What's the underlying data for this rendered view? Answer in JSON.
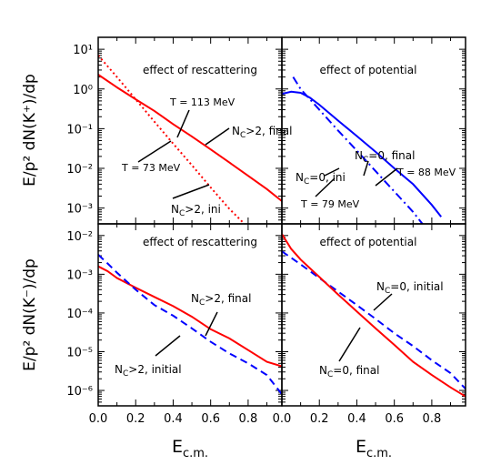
{
  "chart_data": [
    {
      "id": "k_plus_rescattering",
      "type": "line",
      "title": "effect of rescattering",
      "ylabel": "E/p² dN(K⁺)/dp",
      "ylog": true,
      "ylim": [
        0.0004,
        20
      ],
      "xlim": [
        0.0,
        0.98
      ],
      "yticks": [
        "10¹",
        "10⁰",
        "10⁻¹",
        "10⁻²",
        "10⁻³"
      ],
      "series": [
        {
          "name": "NC>2, final",
          "color": "#ff0000",
          "dash": "solid",
          "x": [
            0.0,
            0.1,
            0.2,
            0.3,
            0.4,
            0.5,
            0.6,
            0.7,
            0.8,
            0.9,
            0.98
          ],
          "y": [
            2.3,
            1.1,
            0.55,
            0.28,
            0.13,
            0.063,
            0.03,
            0.014,
            0.0065,
            0.003,
            0.0015
          ]
        },
        {
          "name": "NC>2, ini",
          "color": "#ff0000",
          "dash": "dot",
          "x": [
            0.0,
            0.1,
            0.2,
            0.3,
            0.4,
            0.5,
            0.6,
            0.7,
            0.78
          ],
          "y": [
            7.0,
            2.0,
            0.55,
            0.15,
            0.042,
            0.012,
            0.0033,
            0.00095,
            0.0004
          ]
        }
      ],
      "annotations": [
        "T = 113 MeV",
        "T = 73 MeV",
        "N_C>2, final",
        "N_C>2, ini"
      ]
    },
    {
      "id": "k_plus_potential",
      "type": "line",
      "title": "effect of potential",
      "ylog": true,
      "ylim": [
        0.0004,
        20
      ],
      "xlim": [
        0.0,
        0.98
      ],
      "series": [
        {
          "name": "NC=0, final",
          "color": "#0000ff",
          "dash": "solid",
          "x": [
            0.0,
            0.05,
            0.1,
            0.15,
            0.2,
            0.3,
            0.4,
            0.5,
            0.6,
            0.7,
            0.8,
            0.85
          ],
          "y": [
            0.75,
            0.85,
            0.8,
            0.6,
            0.4,
            0.16,
            0.065,
            0.026,
            0.01,
            0.004,
            0.0012,
            0.0006
          ]
        },
        {
          "name": "NC=0, ini",
          "color": "#0000ff",
          "dash": "dashdot",
          "x": [
            0.06,
            0.1,
            0.2,
            0.3,
            0.4,
            0.5,
            0.6,
            0.7,
            0.75
          ],
          "y": [
            2.0,
            1.0,
            0.3,
            0.09,
            0.028,
            0.0085,
            0.0026,
            0.0008,
            0.0004
          ]
        }
      ],
      "annotations": [
        "N_C=0, final",
        "T = 88 MeV",
        "N_C=0, ini",
        "T = 79 MeV"
      ]
    },
    {
      "id": "k_minus_rescattering",
      "type": "line",
      "title": "effect of rescattering",
      "ylabel": "E/p² dN(K⁻)/dp",
      "xlabel": "E_c.m.",
      "ylog": true,
      "ylim": [
        4e-07,
        0.02
      ],
      "xlim": [
        0.0,
        0.98
      ],
      "yticks": [
        "10⁻²",
        "10⁻³",
        "10⁻⁴",
        "10⁻⁵",
        "10⁻⁶"
      ],
      "xticks": [
        "0.0",
        "0.2",
        "0.4",
        "0.6",
        "0.8"
      ],
      "series": [
        {
          "name": "NC>2, final",
          "color": "#ff0000",
          "dash": "solid",
          "x": [
            0.0,
            0.05,
            0.1,
            0.2,
            0.3,
            0.4,
            0.5,
            0.6,
            0.7,
            0.8,
            0.9,
            0.98
          ],
          "y": [
            0.0016,
            0.0012,
            0.0008,
            0.00045,
            0.00026,
            0.00015,
            8e-05,
            3.8e-05,
            2.2e-05,
            1.1e-05,
            5.5e-06,
            4.2e-06
          ]
        },
        {
          "name": "NC>2, initial",
          "color": "#0000ff",
          "dash": "dash",
          "x": [
            0.0,
            0.05,
            0.1,
            0.2,
            0.3,
            0.4,
            0.5,
            0.6,
            0.7,
            0.8,
            0.9,
            0.98
          ],
          "y": [
            0.0032,
            0.0019,
            0.0011,
            0.0004,
            0.00016,
            8.5e-05,
            4e-05,
            1.8e-05,
            9e-06,
            5e-06,
            2.5e-06,
            8e-07
          ]
        }
      ],
      "annotations": [
        "N_C>2, final",
        "N_C>2, initial"
      ]
    },
    {
      "id": "k_minus_potential",
      "type": "line",
      "title": "effect of potential",
      "xlabel": "E_c.m.",
      "ylog": true,
      "ylim": [
        4e-07,
        0.02
      ],
      "xlim": [
        0.0,
        0.98
      ],
      "xticks": [
        "0.0",
        "0.2",
        "0.4",
        "0.6",
        "0.8"
      ],
      "series": [
        {
          "name": "NC=0, initial",
          "color": "#0000ff",
          "dash": "dash",
          "x": [
            0.0,
            0.1,
            0.2,
            0.3,
            0.4,
            0.5,
            0.6,
            0.7,
            0.8,
            0.9,
            0.98
          ],
          "y": [
            0.0039,
            0.0018,
            0.0008,
            0.00036,
            0.00016,
            7e-05,
            3e-05,
            1.4e-05,
            6e-06,
            2.8e-06,
            1.1e-06
          ]
        },
        {
          "name": "NC=0, final",
          "color": "#ff0000",
          "dash": "solid",
          "x": [
            0.0,
            0.05,
            0.1,
            0.2,
            0.3,
            0.4,
            0.5,
            0.6,
            0.7,
            0.8,
            0.9,
            0.98
          ],
          "y": [
            0.011,
            0.0045,
            0.0024,
            0.00085,
            0.0003,
            0.00011,
            4e-05,
            1.5e-05,
            5.5e-06,
            2.5e-06,
            1.2e-06,
            7e-07
          ]
        }
      ],
      "annotations": [
        "N_C=0, initial",
        "N_C=0, final"
      ]
    }
  ]
}
